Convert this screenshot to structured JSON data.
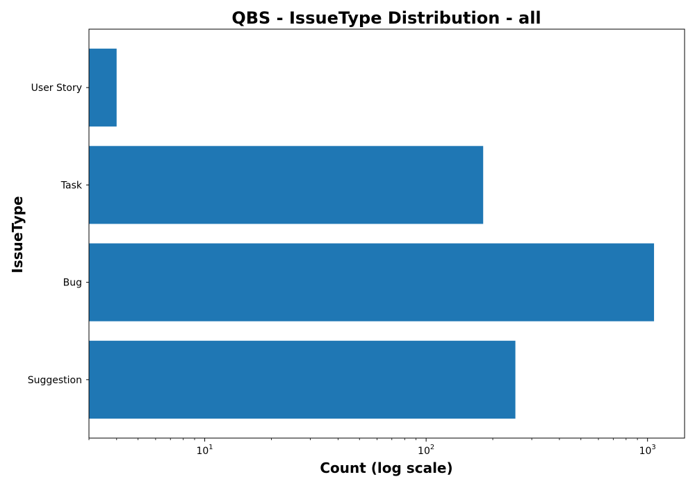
{
  "chart_data": {
    "type": "bar",
    "orientation": "horizontal",
    "title": "QBS - IssueType Distribution - all",
    "xlabel": "Count (log scale)",
    "ylabel": "IssueType",
    "x_scale": "log",
    "xlim": [
      3,
      1470
    ],
    "x_ticks": [
      {
        "base": "10",
        "exp": "1",
        "value": 10
      },
      {
        "base": "10",
        "exp": "2",
        "value": 100
      },
      {
        "base": "10",
        "exp": "3",
        "value": 1000
      }
    ],
    "categories": [
      "Suggestion",
      "Bug",
      "Task",
      "User Story"
    ],
    "values": [
      253,
      1070,
      181,
      4
    ],
    "bar_color": "#1f77b4",
    "grid": false,
    "legend": "none"
  }
}
